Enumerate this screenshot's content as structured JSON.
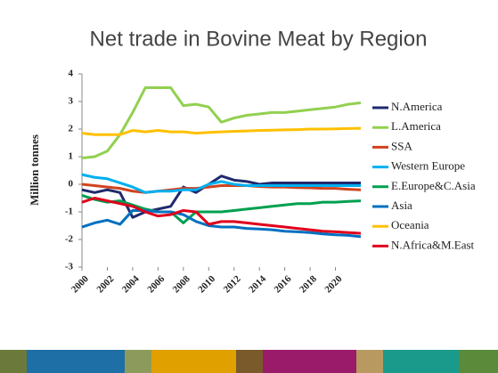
{
  "chart_data": {
    "type": "line",
    "title": "Net trade in Bovine Meat by Region",
    "y_label": "Million tonnes",
    "x": [
      2000,
      2001,
      2002,
      2003,
      2004,
      2005,
      2006,
      2007,
      2008,
      2009,
      2010,
      2011,
      2012,
      2013,
      2014,
      2015,
      2016,
      2017,
      2018,
      2019,
      2020,
      2021,
      2022
    ],
    "xlim": [
      2000,
      2022
    ],
    "xticks": [
      2000,
      2002,
      2004,
      2006,
      2008,
      2010,
      2012,
      2014,
      2016,
      2018,
      2020
    ],
    "ylim": [
      -3,
      4
    ],
    "yticks": [
      -3,
      -2,
      -1,
      0,
      1,
      2,
      3,
      4
    ],
    "legend": "right",
    "series": [
      {
        "name": "N.America",
        "color": "#1f2a6e",
        "values": [
          -0.2,
          -0.3,
          -0.2,
          -0.3,
          -1.2,
          -1.0,
          -0.9,
          -0.8,
          -0.1,
          -0.3,
          0.0,
          0.3,
          0.15,
          0.1,
          0.0,
          0.05,
          0.05,
          0.05,
          0.05,
          0.05,
          0.05,
          0.05,
          0.05
        ]
      },
      {
        "name": "L.America",
        "color": "#92d050",
        "values": [
          0.95,
          1.0,
          1.2,
          1.8,
          2.6,
          3.5,
          3.5,
          3.5,
          2.85,
          2.9,
          2.8,
          2.25,
          2.4,
          2.5,
          2.55,
          2.6,
          2.6,
          2.65,
          2.7,
          2.75,
          2.8,
          2.9,
          2.95
        ]
      },
      {
        "name": "SSA",
        "color": "#d0431e",
        "values": [
          0.0,
          -0.05,
          -0.1,
          -0.15,
          -0.25,
          -0.3,
          -0.25,
          -0.2,
          -0.15,
          -0.15,
          -0.1,
          -0.05,
          -0.05,
          -0.05,
          -0.08,
          -0.1,
          -0.1,
          -0.12,
          -0.13,
          -0.15,
          -0.15,
          -0.18,
          -0.2
        ]
      },
      {
        "name": "Western Europe",
        "color": "#00b0f0",
        "values": [
          0.35,
          0.25,
          0.2,
          0.05,
          -0.1,
          -0.3,
          -0.25,
          -0.25,
          -0.2,
          -0.2,
          0.0,
          0.1,
          0.0,
          -0.05,
          -0.05,
          -0.05,
          -0.05,
          -0.05,
          -0.05,
          -0.05,
          -0.05,
          -0.05,
          -0.05
        ]
      },
      {
        "name": "E.Europe&C.Asia",
        "color": "#00a050",
        "values": [
          -0.4,
          -0.55,
          -0.65,
          -0.6,
          -0.75,
          -0.9,
          -1.0,
          -1.0,
          -1.4,
          -1.0,
          -1.0,
          -1.0,
          -0.95,
          -0.9,
          -0.85,
          -0.8,
          -0.75,
          -0.7,
          -0.7,
          -0.65,
          -0.65,
          -0.62,
          -0.6
        ]
      },
      {
        "name": "Asia",
        "color": "#0070c0",
        "values": [
          -1.55,
          -1.4,
          -1.3,
          -1.45,
          -0.95,
          -0.95,
          -1.0,
          -1.0,
          -1.1,
          -1.35,
          -1.5,
          -1.55,
          -1.55,
          -1.6,
          -1.62,
          -1.65,
          -1.7,
          -1.72,
          -1.75,
          -1.8,
          -1.83,
          -1.85,
          -1.9
        ]
      },
      {
        "name": "Oceania",
        "color": "#ffc000",
        "values": [
          1.85,
          1.8,
          1.8,
          1.8,
          1.95,
          1.9,
          1.95,
          1.9,
          1.9,
          1.85,
          1.88,
          1.9,
          1.92,
          1.93,
          1.95,
          1.96,
          1.97,
          1.98,
          2.0,
          2.0,
          2.01,
          2.02,
          2.03
        ]
      },
      {
        "name": "N.Africa&M.East",
        "color": "#e0001b",
        "values": [
          -0.65,
          -0.5,
          -0.6,
          -0.7,
          -0.8,
          -1.0,
          -1.15,
          -1.1,
          -0.95,
          -1.0,
          -1.45,
          -1.35,
          -1.35,
          -1.4,
          -1.45,
          -1.5,
          -1.55,
          -1.6,
          -1.65,
          -1.7,
          -1.72,
          -1.75,
          -1.78
        ]
      }
    ]
  }
}
